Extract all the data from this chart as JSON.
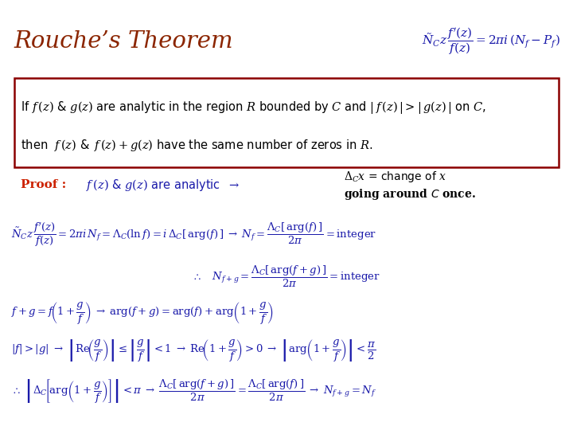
{
  "bg_color": "#ffffff",
  "title": "Rouche’s Theorem",
  "title_color": "#8B2500",
  "math_color": "#1a1aaa",
  "proof_color": "#CC2200",
  "box_color": "#8B0000"
}
